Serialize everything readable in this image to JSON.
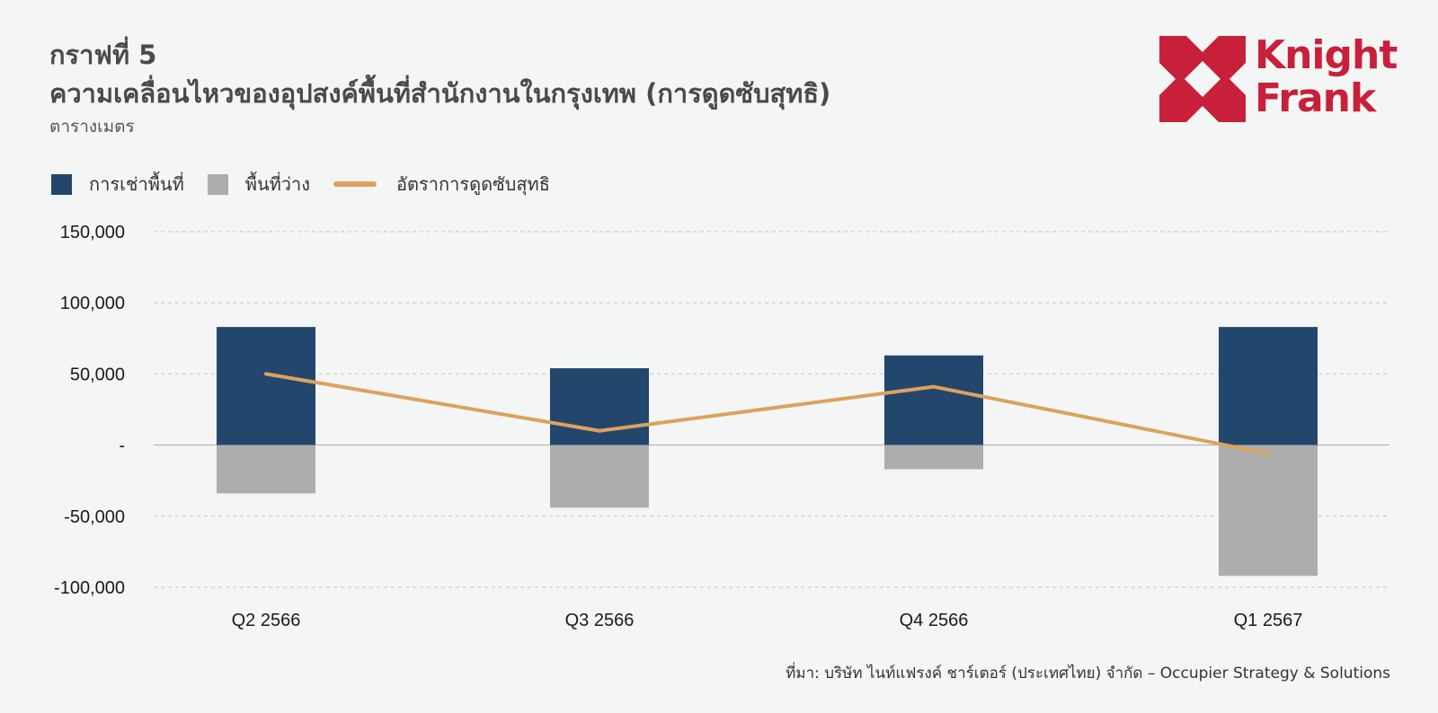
{
  "header": {
    "figure_label": "กราฟที่ 5",
    "title": "ความเคลื่อนไหวของอุปสงค์พื้นที่สำนักงานในกรุงเทพ (การดูดซับสุทธิ)",
    "unit": "ตารางเมตร"
  },
  "logo": {
    "line1": "Knight",
    "line2": "Frank",
    "color": "#c8203b"
  },
  "chart_data": {
    "type": "bar",
    "categories": [
      "Q2 2566",
      "Q3 2566",
      "Q4 2566",
      "Q1 2567"
    ],
    "series": [
      {
        "name": "การเช่าพื้นที่",
        "type": "bar",
        "color": "#23466d",
        "values": [
          83000,
          54000,
          63000,
          83000
        ]
      },
      {
        "name": "พื้นที่ว่าง",
        "type": "bar",
        "color": "#adadad",
        "values": [
          -34000,
          -44000,
          -17000,
          -92000
        ]
      },
      {
        "name": "อัตราการดูดซับสุทธิ",
        "type": "line",
        "color": "#dca25c",
        "values": [
          50000,
          10000,
          41000,
          -6000
        ]
      }
    ],
    "y_ticks": [
      "150,000",
      "100,000",
      "50,000",
      "-",
      "-50,000",
      "-100,000"
    ],
    "ylim": [
      -100000,
      150000
    ],
    "grid": true,
    "legend_position": "top-left"
  },
  "source": "ที่มา: บริษัท ไนท์แฟรงค์ ชาร์เตอร์ (ประเทศไทย) จำกัด – Occupier Strategy & Solutions"
}
